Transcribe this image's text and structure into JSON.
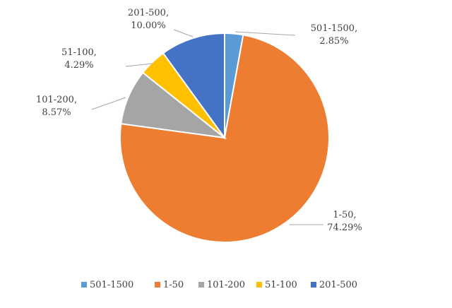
{
  "chart_data": {
    "type": "pie",
    "categories": [
      "501-1500",
      "1-50",
      "101-200",
      "51-100",
      "201-500"
    ],
    "values": [
      2.85,
      74.29,
      8.57,
      4.29,
      10.0
    ],
    "value_labels": [
      "2.85%",
      "74.29%",
      "8.57%",
      "4.29%",
      "10.00%"
    ],
    "data_labels": [
      {
        "category": "501-1500,",
        "value": "2.85%"
      },
      {
        "category": "1-50,",
        "value": "74.29%"
      },
      {
        "category": "101-200,",
        "value": "8.57%"
      },
      {
        "category": "51-100,",
        "value": "4.29%"
      },
      {
        "category": "201-500,",
        "value": "10.00%"
      }
    ],
    "colors": [
      "#5B9BD5",
      "#ED7D31",
      "#A5A5A5",
      "#FFC000",
      "#4472C4"
    ],
    "legend_position": "bottom",
    "start_angle_deg": 0,
    "direction": "clockwise"
  }
}
